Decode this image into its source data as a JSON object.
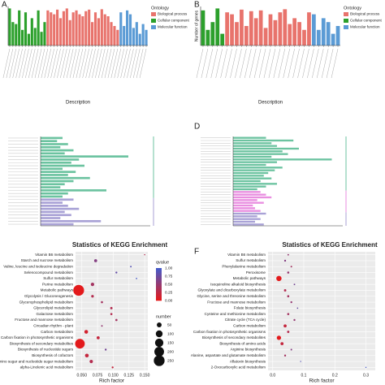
{
  "chart_data": [
    {
      "type": "bar",
      "label": "A",
      "legend_title": "Ontology",
      "xlabel": "Description",
      "ylim": [
        0,
        100
      ],
      "series": [
        {
          "name": "Cellular component",
          "color": "#2ca02c",
          "values": [
            95,
            60,
            55,
            90,
            40,
            85,
            30,
            70,
            45,
            90,
            35,
            60
          ]
        },
        {
          "name": "Biological process",
          "color": "#e8736c",
          "values": [
            90,
            85,
            80,
            92,
            70,
            88,
            95,
            65,
            85,
            90,
            80,
            75,
            88,
            92,
            60,
            85,
            70,
            93,
            80,
            75,
            60,
            50,
            40
          ]
        },
        {
          "name": "Molecular function",
          "color": "#5b9bd5",
          "values": [
            85,
            50,
            90,
            80,
            45,
            60,
            30,
            55,
            40
          ]
        }
      ]
    },
    {
      "type": "bar",
      "label": "B",
      "legend_title": "Ontology",
      "xlabel": "Description",
      "ylabel": "Number of genes",
      "ylim": [
        0,
        100
      ],
      "series": [
        {
          "name": "Cellular component",
          "color": "#2ca02c",
          "values": [
            90,
            40,
            60,
            95,
            30
          ]
        },
        {
          "name": "Biological process",
          "color": "#e8736c",
          "values": [
            85,
            80,
            60,
            92,
            50,
            88,
            70,
            90,
            45,
            80,
            65,
            85,
            93,
            55,
            70,
            60,
            40,
            85
          ]
        },
        {
          "name": "Molecular function",
          "color": "#5b9bd5",
          "values": [
            80,
            40,
            70,
            60,
            30,
            50
          ]
        }
      ]
    },
    {
      "type": "hbar",
      "xlim": [
        0,
        100
      ],
      "series": [
        {
          "color": "#6cc3a0",
          "values": [
            20,
            15,
            25,
            18,
            30,
            22,
            80,
            35,
            28,
            40,
            20,
            32,
            25,
            45,
            30,
            22,
            18,
            60,
            25,
            20
          ]
        },
        {
          "color": "#a9a2d6",
          "values": [
            30,
            20,
            25,
            35,
            22,
            28,
            18,
            55,
            30
          ]
        }
      ]
    },
    {
      "type": "hbar",
      "label": "D",
      "xlim": [
        0,
        100
      ],
      "series": [
        {
          "color": "#6cc3a0",
          "values": [
            30,
            55,
            35,
            40,
            60,
            45,
            50,
            35,
            90,
            40,
            30,
            45,
            38,
            32,
            28,
            35,
            25,
            40,
            30,
            22
          ]
        },
        {
          "color": "#e98ee0",
          "values": [
            25,
            30,
            35,
            22,
            28,
            18,
            20,
            25
          ]
        },
        {
          "color": "#a9a2d6",
          "values": [
            30,
            22,
            25,
            20,
            28
          ]
        }
      ]
    },
    {
      "type": "dot",
      "title": "Statistics of KEGG Enrichment",
      "xlabel": "Rich factor",
      "qvalue_title": "qvalue",
      "number_title": "number",
      "qvalue_ticks": [
        {
          "value": 1,
          "label": "1.00"
        },
        0.75,
        {
          "value": 0.5,
          "label": "0.50"
        },
        0.25,
        {
          "value": 0,
          "label": "0.00"
        }
      ],
      "number_ticks": [
        50,
        100,
        150,
        200,
        250
      ],
      "categories": [
        "Vitamin B6 metabolism",
        "Starch and sucrose metabolism",
        "Valine, leucine and isoleucine degradation",
        "Selenocompound metabolism",
        "Sulfur metabolism",
        "Purine metabolism",
        "Metabolic pathways",
        "Glycolysis / Gluconeogenesis",
        "Glycerophospholipid metabolism",
        "Glycerolipid metabolism",
        "Galactose metabolism",
        "Fructose and mannose metabolism",
        "Circadian rhythm - plant",
        "Carbon metabolism",
        "Carbon fixation in photosynthetic organisms",
        "Biosynthesis of secondary metabolites",
        "Biosynthesis of nucleotide sugars",
        "Biosynthesis of cofactors",
        "Amino sugar and nucleotide sugar metabolism",
        "alpha-Linolenic acid metabolism"
      ],
      "values": [
        0.15,
        0.072,
        0.128,
        0.105,
        0.137,
        0.067,
        0.045,
        0.067,
        0.082,
        0.097,
        0.097,
        0.105,
        0.082,
        0.057,
        0.076,
        0.047,
        0.088,
        0.058,
        0.065,
        0.099
      ],
      "qvalues": [
        0.3,
        0.6,
        0.9,
        0.8,
        1.0,
        0.4,
        0.0,
        0.3,
        0.4,
        0.3,
        0.3,
        0.4,
        0.5,
        0.1,
        0.2,
        0.0,
        0.7,
        0.2,
        0.3,
        0.2
      ],
      "numbers": [
        3,
        20,
        5,
        8,
        4,
        25,
        250,
        15,
        10,
        12,
        10,
        10,
        6,
        30,
        20,
        200,
        8,
        30,
        25,
        8
      ],
      "xlim": [
        0.04,
        0.155
      ],
      "xticks": [
        {
          "value": 0.05,
          "label": "0.050"
        },
        0.075,
        {
          "value": 0.1,
          "label": "0.100"
        },
        0.125,
        {
          "value": 0.15,
          "label": "0.150"
        }
      ]
    },
    {
      "type": "dot",
      "label": "F",
      "title": "Statistics of KEGG Enrichment",
      "xlabel": "Rich factor",
      "categories": [
        "Vitamin B6 metabolism",
        "Sulfur metabolism",
        "Phenylalanine metabolism",
        "Peroxisome",
        "Metabolic pathways",
        "Isoquinoline alkaloid biosynthesis",
        "Glyoxylate and dicarboxylate metabolism",
        "Glycine, serine and threonine metabolism",
        "Fructose and mannose metabolism",
        "Folate biosynthesis",
        "Cysteine and methionine metabolism",
        "Citrate cycle (TCA cycle)",
        "Carbon metabolism",
        "Carbon fixation in photosynthetic organisms",
        "Biosynthesis of secondary metabolites",
        "Biosynthesis of amino acids",
        "Arginine biosynthesis",
        "Alanine, aspartate and glutamate metabolism",
        "Aflatoxin biosynthesis",
        "2-Oxocarboxylic acid metabolism"
      ],
      "values": [
        0.05,
        0.04,
        0.06,
        0.05,
        0.02,
        0.07,
        0.04,
        0.05,
        0.06,
        0.08,
        0.05,
        0.07,
        0.04,
        0.05,
        0.02,
        0.03,
        0.06,
        0.04,
        0.09,
        0.3
      ],
      "qvalues": [
        0.5,
        0.6,
        0.4,
        0.5,
        0.0,
        0.7,
        0.3,
        0.4,
        0.5,
        0.8,
        0.4,
        0.5,
        0.2,
        0.3,
        0.0,
        0.2,
        0.6,
        0.4,
        0.9,
        1.0
      ],
      "numbers": [
        5,
        8,
        6,
        10,
        60,
        5,
        12,
        10,
        8,
        4,
        10,
        8,
        20,
        12,
        40,
        20,
        6,
        8,
        3,
        3
      ],
      "xlim": [
        -0.015,
        0.33
      ],
      "xticks": [
        {
          "value": 0,
          "label": "0.0"
        },
        0.1,
        0.2,
        0.3
      ]
    }
  ]
}
